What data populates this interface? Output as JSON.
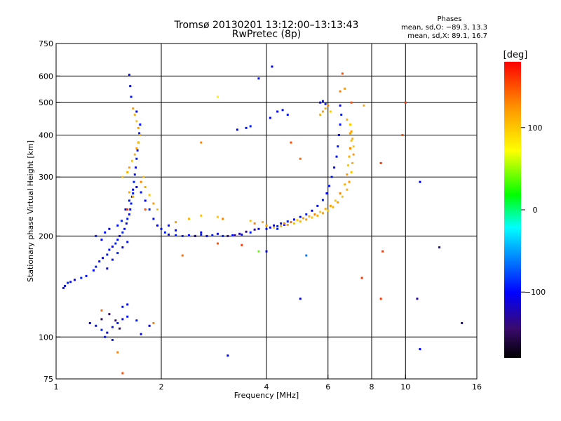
{
  "chart_data": {
    "type": "scatter",
    "title": "Tromsø 20130201 13:12:00–13:13:43",
    "subtitle": "RwPretec (8p)",
    "xlabel": "Frequency [MHz]",
    "ylabel": "Stationary phase Virtual Height [km]",
    "x_scale": "log",
    "y_scale": "log",
    "xlim": [
      1,
      16
    ],
    "ylim": [
      75,
      750
    ],
    "x_ticks": [
      1,
      2,
      4,
      6,
      8,
      10,
      16
    ],
    "y_ticks": [
      75,
      100,
      200,
      300,
      400,
      500,
      600,
      750
    ],
    "grid": true,
    "phases": {
      "heading": "Phases",
      "o_line": "mean, sd,O: −89.3, 13.3",
      "x_line": "mean, sd,X:  89.1, 16.7"
    },
    "colorbar": {
      "label": "[deg]",
      "range": [
        -180,
        180
      ],
      "ticks": [
        {
          "value": 100,
          "label": "100"
        },
        {
          "value": 0,
          "label": "0"
        },
        {
          "value": -100,
          "label": "−100"
        }
      ]
    },
    "series": [
      {
        "points": [
          [
            1.05,
            140,
            -95
          ],
          [
            1.06,
            142,
            -100
          ],
          [
            1.08,
            145,
            -90
          ],
          [
            1.1,
            146,
            -95
          ],
          [
            1.13,
            148,
            -100
          ],
          [
            1.18,
            150,
            -90
          ],
          [
            1.22,
            152,
            -95
          ],
          [
            1.28,
            158,
            -100
          ],
          [
            1.3,
            162,
            -92
          ],
          [
            1.33,
            168,
            -95
          ],
          [
            1.36,
            172,
            -100
          ],
          [
            1.4,
            176,
            -92
          ],
          [
            1.42,
            182,
            -95
          ],
          [
            1.45,
            186,
            -100
          ],
          [
            1.48,
            190,
            -90
          ],
          [
            1.5,
            195,
            -95
          ],
          [
            1.52,
            200,
            -100
          ],
          [
            1.55,
            205,
            -90
          ],
          [
            1.57,
            210,
            -95
          ],
          [
            1.59,
            218,
            -100
          ],
          [
            1.6,
            225,
            -92
          ],
          [
            1.62,
            232,
            -95
          ],
          [
            1.63,
            240,
            -100
          ],
          [
            1.64,
            250,
            -92
          ],
          [
            1.65,
            262,
            -95
          ],
          [
            1.66,
            275,
            -100
          ],
          [
            1.67,
            290,
            -90
          ],
          [
            1.68,
            305,
            -95
          ],
          [
            1.69,
            320,
            -100
          ],
          [
            1.7,
            340,
            -92
          ],
          [
            1.71,
            360,
            -95
          ],
          [
            1.72,
            380,
            -100
          ],
          [
            1.73,
            405,
            -90
          ],
          [
            1.74,
            430,
            -95
          ],
          [
            1.7,
            470,
            -100
          ],
          [
            1.64,
            520,
            -95
          ],
          [
            1.63,
            560,
            -100
          ],
          [
            1.62,
            605,
            -95
          ],
          [
            1.4,
            160,
            -100
          ],
          [
            1.45,
            170,
            -95
          ],
          [
            1.5,
            178,
            -90
          ],
          [
            1.55,
            185,
            -100
          ],
          [
            1.6,
            192,
            -95
          ],
          [
            1.35,
            195,
            -100
          ],
          [
            1.3,
            200,
            -92
          ],
          [
            1.38,
            205,
            -95
          ],
          [
            1.42,
            210,
            -100
          ],
          [
            1.5,
            215,
            -95
          ],
          [
            1.54,
            222,
            -90
          ],
          [
            1.58,
            240,
            -100
          ],
          [
            1.62,
            255,
            -95
          ],
          [
            1.66,
            268,
            -92
          ],
          [
            1.7,
            280,
            -100
          ],
          [
            1.75,
            270,
            -95
          ],
          [
            1.8,
            255,
            -100
          ],
          [
            1.85,
            240,
            -92
          ],
          [
            1.9,
            225,
            -95
          ],
          [
            1.95,
            215,
            -100
          ],
          [
            2.0,
            210,
            -95
          ],
          [
            2.05,
            205,
            -92
          ],
          [
            2.1,
            202,
            -100
          ],
          [
            2.2,
            201,
            -95
          ],
          [
            2.3,
            200,
            -92
          ],
          [
            2.4,
            201,
            -100
          ],
          [
            2.5,
            200,
            -95
          ],
          [
            2.6,
            202,
            -92
          ],
          [
            2.7,
            200,
            -100
          ],
          [
            2.8,
            201,
            -95
          ],
          [
            3.0,
            200,
            -92
          ],
          [
            3.2,
            201,
            -100
          ],
          [
            3.4,
            202,
            -95
          ],
          [
            3.6,
            205,
            -92
          ],
          [
            3.8,
            210,
            -100
          ],
          [
            2.1,
            215,
            -95
          ],
          [
            2.2,
            208,
            -100
          ],
          [
            2.6,
            205,
            -95
          ],
          [
            2.9,
            203,
            -100
          ],
          [
            3.1,
            200,
            -130
          ],
          [
            3.25,
            201,
            -140
          ],
          [
            3.35,
            203,
            -130
          ],
          [
            3.5,
            206,
            -135
          ],
          [
            3.7,
            209,
            -130
          ],
          [
            4.2,
            215,
            -100
          ],
          [
            4.4,
            218,
            -95
          ],
          [
            4.6,
            221,
            -92
          ],
          [
            4.8,
            224,
            -100
          ],
          [
            5.0,
            228,
            -95
          ],
          [
            5.2,
            232,
            -92
          ],
          [
            5.4,
            238,
            -100
          ],
          [
            5.6,
            246,
            -95
          ],
          [
            5.8,
            256,
            -92
          ],
          [
            5.95,
            268,
            -100
          ],
          [
            6.05,
            282,
            -95
          ],
          [
            6.15,
            300,
            -92
          ],
          [
            6.25,
            320,
            -100
          ],
          [
            6.35,
            345,
            -95
          ],
          [
            6.4,
            370,
            -92
          ],
          [
            6.45,
            400,
            -100
          ],
          [
            6.5,
            430,
            -95
          ],
          [
            6.55,
            460,
            -92
          ],
          [
            6.5,
            490,
            -100
          ],
          [
            4.0,
            210,
            -95
          ],
          [
            4.1,
            212,
            -100
          ],
          [
            4.3,
            214,
            -92
          ],
          [
            4.5,
            216,
            -95
          ],
          [
            5.7,
            500,
            -100
          ],
          [
            5.8,
            505,
            -95
          ],
          [
            5.9,
            495,
            -92
          ],
          [
            4.3,
            470,
            -100
          ],
          [
            4.45,
            475,
            -95
          ],
          [
            4.6,
            460,
            -92
          ],
          [
            4.1,
            450,
            -100
          ],
          [
            3.5,
            420,
            -95
          ],
          [
            3.6,
            425,
            -92
          ],
          [
            3.3,
            415,
            -100
          ],
          [
            1.25,
            110,
            -100
          ],
          [
            1.3,
            108,
            -95
          ],
          [
            1.35,
            105,
            -92
          ],
          [
            1.4,
            103,
            -100
          ],
          [
            1.45,
            107,
            -95
          ],
          [
            1.5,
            110,
            -92
          ],
          [
            1.55,
            113,
            -100
          ],
          [
            1.6,
            115,
            -95
          ],
          [
            1.7,
            112,
            -92
          ],
          [
            1.85,
            108,
            -100
          ],
          [
            1.38,
            100,
            -95
          ],
          [
            1.45,
            98,
            -92
          ],
          [
            1.75,
            102,
            -100
          ],
          [
            1.55,
            123,
            -95
          ],
          [
            1.6,
            125,
            -100
          ],
          [
            1.35,
            113,
            -150
          ],
          [
            1.42,
            117,
            -155
          ],
          [
            1.48,
            112,
            -140
          ],
          [
            1.52,
            106,
            -150
          ],
          [
            4.15,
            640,
            -100
          ],
          [
            4.3,
            210,
            -92
          ],
          [
            4.0,
            180,
            -100
          ],
          [
            5.0,
            130,
            -100
          ],
          [
            10.8,
            130,
            -130
          ],
          [
            11.0,
            92,
            -100
          ],
          [
            12.5,
            185,
            -130
          ],
          [
            14.5,
            110,
            -130
          ],
          [
            3.1,
            88,
            -100
          ],
          [
            11.0,
            290,
            -100
          ],
          [
            2.5,
            200,
            -130
          ],
          [
            3.8,
            590,
            -95
          ]
        ]
      },
      {
        "points": [
          [
            1.55,
            300,
            100
          ],
          [
            1.6,
            310,
            110
          ],
          [
            1.62,
            320,
            120
          ],
          [
            1.65,
            335,
            100
          ],
          [
            1.68,
            350,
            110
          ],
          [
            1.7,
            365,
            120
          ],
          [
            1.72,
            380,
            100
          ],
          [
            1.74,
            400,
            110
          ],
          [
            1.72,
            420,
            120
          ],
          [
            1.7,
            440,
            100
          ],
          [
            1.68,
            460,
            110
          ],
          [
            1.66,
            480,
            120
          ],
          [
            1.75,
            290,
            130
          ],
          [
            1.78,
            300,
            100
          ],
          [
            1.8,
            280,
            110
          ],
          [
            1.85,
            265,
            100
          ],
          [
            1.9,
            250,
            120
          ],
          [
            1.95,
            240,
            100
          ],
          [
            1.62,
            270,
            115
          ],
          [
            1.66,
            262,
            110
          ],
          [
            4.2,
            212,
            100
          ],
          [
            4.4,
            214,
            110
          ],
          [
            4.6,
            216,
            120
          ],
          [
            4.8,
            218,
            100
          ],
          [
            5.0,
            221,
            110
          ],
          [
            5.2,
            224,
            120
          ],
          [
            5.4,
            227,
            100
          ],
          [
            5.6,
            230,
            110
          ],
          [
            5.8,
            234,
            120
          ],
          [
            6.0,
            238,
            100
          ],
          [
            6.2,
            244,
            110
          ],
          [
            6.4,
            252,
            120
          ],
          [
            6.6,
            262,
            100
          ],
          [
            6.8,
            275,
            110
          ],
          [
            6.9,
            290,
            120
          ],
          [
            7.0,
            310,
            100
          ],
          [
            7.05,
            330,
            110
          ],
          [
            7.1,
            350,
            120
          ],
          [
            7.1,
            370,
            100
          ],
          [
            7.05,
            390,
            110
          ],
          [
            7.0,
            410,
            120
          ],
          [
            6.95,
            430,
            100
          ],
          [
            6.8,
            445,
            110
          ],
          [
            4.5,
            218,
            130
          ],
          [
            4.7,
            220,
            140
          ],
          [
            4.9,
            223,
            100
          ],
          [
            5.1,
            226,
            120
          ],
          [
            5.3,
            229,
            110
          ],
          [
            5.5,
            232,
            130
          ],
          [
            5.7,
            236,
            100
          ],
          [
            5.9,
            241,
            110
          ],
          [
            6.1,
            246,
            120
          ],
          [
            6.3,
            255,
            100
          ],
          [
            6.5,
            268,
            130
          ],
          [
            6.7,
            285,
            110
          ],
          [
            6.8,
            305,
            120
          ],
          [
            6.85,
            325,
            100
          ],
          [
            6.9,
            345,
            110
          ],
          [
            6.95,
            365,
            130
          ],
          [
            7.0,
            385,
            100
          ],
          [
            6.95,
            405,
            120
          ],
          [
            3.9,
            220,
            110
          ],
          [
            4.0,
            215,
            120
          ],
          [
            3.6,
            222,
            100
          ],
          [
            3.7,
            218,
            130
          ],
          [
            5.8,
            470,
            120
          ],
          [
            5.9,
            480,
            110
          ],
          [
            6.0,
            490,
            130
          ],
          [
            6.1,
            470,
            100
          ],
          [
            5.7,
            460,
            110
          ],
          [
            2.6,
            230,
            100
          ],
          [
            2.4,
            225,
            110
          ],
          [
            2.2,
            220,
            120
          ],
          [
            2.9,
            228,
            100
          ],
          [
            3.0,
            225,
            130
          ],
          [
            6.6,
            610,
            150
          ],
          [
            6.5,
            540,
            130
          ],
          [
            6.7,
            550,
            120
          ],
          [
            7.6,
            490,
            110
          ],
          [
            1.5,
            90,
            130
          ],
          [
            1.55,
            78,
            150
          ],
          [
            1.35,
            120,
            140
          ],
          [
            1.9,
            110,
            130
          ],
          [
            2.6,
            380,
            130
          ],
          [
            7.0,
            500,
            150
          ],
          [
            9.8,
            400,
            150
          ],
          [
            10.0,
            500,
            160
          ],
          [
            8.5,
            330,
            160
          ],
          [
            5.0,
            340,
            140
          ],
          [
            4.7,
            380,
            150
          ],
          [
            2.9,
            190,
            150
          ],
          [
            3.4,
            188,
            160
          ],
          [
            7.5,
            150,
            160
          ],
          [
            8.5,
            130,
            160
          ],
          [
            8.6,
            180,
            160
          ],
          [
            2.3,
            175,
            140
          ],
          [
            1.8,
            240,
            150
          ],
          [
            2.9,
            520,
            80
          ],
          [
            3.8,
            180,
            40
          ],
          [
            5.2,
            175,
            -60
          ],
          [
            1.6,
            240,
            160
          ]
        ]
      }
    ]
  }
}
